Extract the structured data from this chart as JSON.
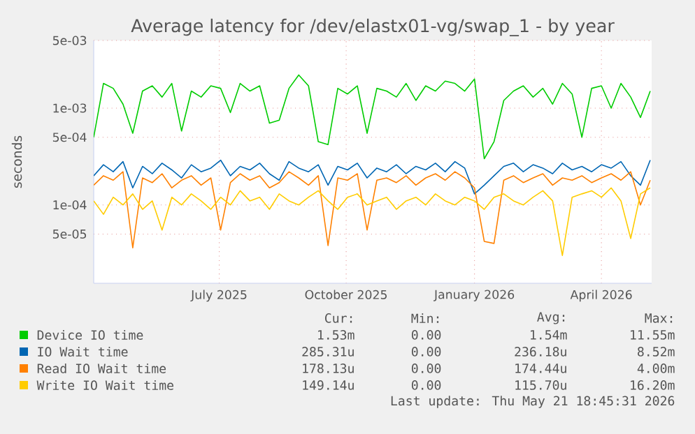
{
  "chart_data": {
    "type": "line",
    "title": "Average latency for /dev/elastx01-vg/swap_1 - by year",
    "ylabel": "seconds",
    "log": "y",
    "grid": true,
    "legend": "bottom",
    "marker": "none",
    "line_style": "solid",
    "xlim": [
      "2025-04-16",
      "2026-05-21"
    ],
    "xticks": [
      {
        "value": "2025-07-15",
        "label": "July 2025"
      },
      {
        "value": "2025-10-14",
        "label": "October 2025"
      },
      {
        "value": "2026-01-14",
        "label": "January 2026"
      },
      {
        "value": "2026-04-15",
        "label": "April 2026"
      }
    ],
    "ylim": [
      1.55e-05,
      0.005
    ],
    "yticks": [
      {
        "value": 5e-05,
        "label": "5e-05"
      },
      {
        "value": 0.0001,
        "label": "1e-04"
      },
      {
        "value": 0.0005,
        "label": "5e-04"
      },
      {
        "value": 0.001,
        "label": "1e-03"
      },
      {
        "value": 0.005,
        "label": "5e-03"
      }
    ],
    "x": [
      "2025-04-16",
      "2025-04-23",
      "2025-04-30",
      "2025-05-07",
      "2025-05-14",
      "2025-05-21",
      "2025-05-28",
      "2025-06-04",
      "2025-06-11",
      "2025-06-18",
      "2025-06-25",
      "2025-07-02",
      "2025-07-09",
      "2025-07-16",
      "2025-07-23",
      "2025-07-30",
      "2025-08-06",
      "2025-08-13",
      "2025-08-20",
      "2025-08-27",
      "2025-09-03",
      "2025-09-10",
      "2025-09-17",
      "2025-09-24",
      "2025-10-01",
      "2025-10-08",
      "2025-10-15",
      "2025-10-22",
      "2025-10-29",
      "2025-11-05",
      "2025-11-12",
      "2025-11-19",
      "2025-11-26",
      "2025-12-03",
      "2025-12-10",
      "2025-12-17",
      "2025-12-24",
      "2025-12-31",
      "2026-01-07",
      "2026-01-14",
      "2026-01-21",
      "2026-01-28",
      "2026-02-04",
      "2026-02-11",
      "2026-02-18",
      "2026-02-25",
      "2026-03-04",
      "2026-03-11",
      "2026-03-18",
      "2026-03-25",
      "2026-04-01",
      "2026-04-08",
      "2026-04-15",
      "2026-04-22",
      "2026-04-29",
      "2026-05-06",
      "2026-05-13",
      "2026-05-20"
    ],
    "series": [
      {
        "name": "Device IO time",
        "color": "#00cc00",
        "values": [
          0.0005,
          0.0018,
          0.0016,
          0.0011,
          0.00055,
          0.0015,
          0.0017,
          0.0013,
          0.0018,
          0.00058,
          0.0015,
          0.0013,
          0.0017,
          0.0016,
          0.0009,
          0.0018,
          0.0015,
          0.0017,
          0.0007,
          0.00075,
          0.0016,
          0.0022,
          0.0017,
          0.00045,
          0.00042,
          0.0016,
          0.0014,
          0.0017,
          0.00055,
          0.0016,
          0.0015,
          0.0013,
          0.0018,
          0.0012,
          0.0017,
          0.0015,
          0.0019,
          0.0018,
          0.0015,
          0.002,
          0.0003,
          0.00045,
          0.0012,
          0.0015,
          0.0017,
          0.0013,
          0.0016,
          0.0011,
          0.0018,
          0.0014,
          0.0005,
          0.0016,
          0.0017,
          0.001,
          0.0018,
          0.0013,
          0.0008,
          0.0015
        ]
      },
      {
        "name": "IO Wait time",
        "color": "#0066b3",
        "values": [
          0.0002,
          0.00026,
          0.00022,
          0.00028,
          0.00015,
          0.00025,
          0.00021,
          0.00027,
          0.00023,
          0.00019,
          0.00026,
          0.00022,
          0.00024,
          0.00029,
          0.0002,
          0.00025,
          0.00023,
          0.00027,
          0.00021,
          0.00018,
          0.00028,
          0.00024,
          0.00022,
          0.00026,
          0.00016,
          0.00025,
          0.00023,
          0.00027,
          0.00019,
          0.00024,
          0.00022,
          0.00026,
          0.00021,
          0.00025,
          0.00023,
          0.00027,
          0.00022,
          0.00028,
          0.00024,
          0.00013,
          0.00016,
          0.0002,
          0.00025,
          0.00027,
          0.00022,
          0.00026,
          0.00024,
          0.00021,
          0.00027,
          0.00023,
          0.00025,
          0.00022,
          0.00026,
          0.00024,
          0.00028,
          0.0002,
          0.00016,
          0.00029
        ]
      },
      {
        "name": "Read IO Wait time",
        "color": "#ff8000",
        "values": [
          0.00016,
          0.0002,
          0.00018,
          0.00022,
          3.6e-05,
          0.00019,
          0.00017,
          0.00021,
          0.00015,
          0.00018,
          0.0002,
          0.00016,
          0.00019,
          5.5e-05,
          0.00017,
          0.00021,
          0.00018,
          0.0002,
          0.00015,
          0.00017,
          0.00022,
          0.00019,
          0.00016,
          0.0002,
          3.8e-05,
          0.00019,
          0.00018,
          0.00021,
          5.5e-05,
          0.00018,
          0.00019,
          0.00017,
          0.0002,
          0.00016,
          0.00019,
          0.00021,
          0.00018,
          0.00022,
          0.00019,
          0.00015,
          4.2e-05,
          4e-05,
          0.00018,
          0.0002,
          0.00017,
          0.00019,
          0.00021,
          0.00016,
          0.00019,
          0.00018,
          0.0002,
          0.00017,
          0.00019,
          0.00021,
          0.00018,
          0.00022,
          0.0001,
          0.00018
        ]
      },
      {
        "name": "Write IO Wait time",
        "color": "#ffcc00",
        "values": [
          0.00011,
          8e-05,
          0.00012,
          0.0001,
          0.00013,
          9e-05,
          0.00011,
          5.5e-05,
          0.00012,
          0.0001,
          0.00013,
          0.00011,
          9e-05,
          0.00012,
          0.0001,
          0.00014,
          0.00011,
          0.00012,
          9e-05,
          0.00013,
          0.00011,
          0.0001,
          0.00012,
          0.00014,
          0.00011,
          9e-05,
          0.00012,
          0.00013,
          0.0001,
          0.00011,
          0.00012,
          9e-05,
          0.00011,
          0.00012,
          0.0001,
          0.00013,
          0.00011,
          0.0001,
          0.00012,
          0.00011,
          9e-05,
          0.00012,
          0.00013,
          0.00011,
          0.0001,
          0.00012,
          0.00014,
          0.00011,
          3e-05,
          0.00012,
          0.00013,
          0.00014,
          0.00012,
          0.00015,
          0.00011,
          4.5e-05,
          0.00013,
          0.00015
        ]
      }
    ],
    "annotations": [
      "Cur:",
      "Min:",
      "Avg:",
      "Max:",
      "1.53m",
      "0.00",
      "1.54m",
      "11.55m",
      "285.31u",
      "0.00",
      "236.18u",
      "8.52m",
      "178.13u",
      "0.00",
      "174.44u",
      "4.00m",
      "149.14u",
      "0.00",
      "115.70u",
      "16.20m",
      "Last update: Thu May 21 18:45:31 2026"
    ]
  }
}
